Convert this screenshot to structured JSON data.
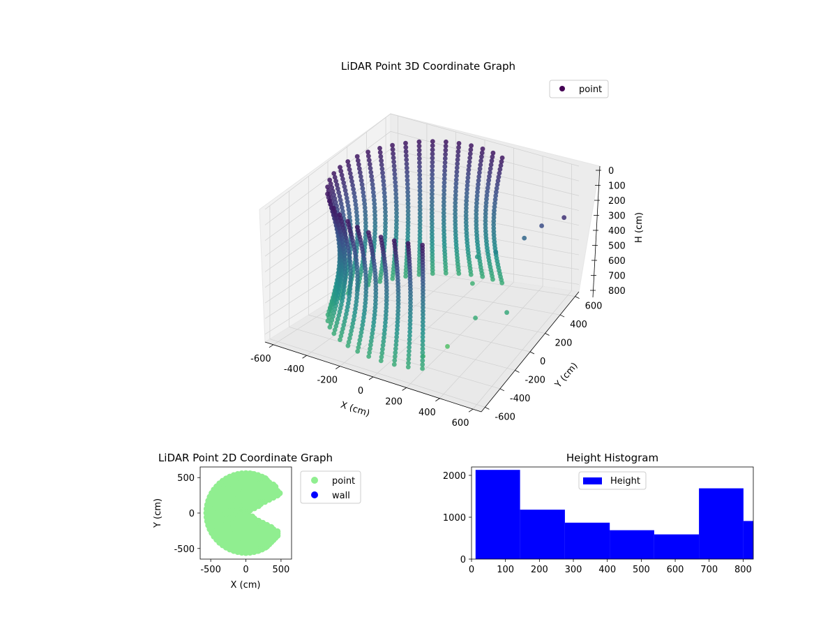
{
  "colors": {
    "viridis": [
      "#440154",
      "#3b528b",
      "#21918c",
      "#5ec962",
      "#fde725"
    ],
    "scatter2d_point": "#90ee90",
    "scatter2d_wall": "#0000ff",
    "histogram_bar": "#0000ff"
  },
  "chart_data": [
    {
      "type": "scatter",
      "title": "LiDAR Point 3D Coordinate Graph",
      "xlabel": "X (cm)",
      "ylabel": "Y (cm)",
      "zlabel": "H (cm)",
      "xlim": [
        -650,
        650
      ],
      "ylim": [
        -650,
        650
      ],
      "zlim": [
        0,
        850
      ],
      "z_inverted": true,
      "xticks": [
        "-600",
        "-400",
        "-200",
        "0",
        "200",
        "400",
        "600"
      ],
      "yticks": [
        "-600",
        "-400",
        "-200",
        "0",
        "200",
        "400",
        "600"
      ],
      "zticks": [
        "0",
        "100",
        "200",
        "300",
        "400",
        "500",
        "600",
        "700",
        "800"
      ],
      "legend": {
        "position": "top-right",
        "entries": [
          "point"
        ]
      },
      "colormap": "viridis",
      "series": [
        {
          "name": "point",
          "description_of_points": "dense cylindrical wall arc of radius ~560 cm spanning heights 0-800 cm, plus scattered points inside",
          "wall_radius": 560,
          "wall_angle_range_deg": [
            70,
            300
          ],
          "scattered_points": [
            {
              "x": 150,
              "y": 300,
              "h": 520
            },
            {
              "x": 300,
              "y": 250,
              "h": 430
            },
            {
              "x": 420,
              "y": 380,
              "h": 380
            },
            {
              "x": 500,
              "y": 450,
              "h": 320
            },
            {
              "x": 600,
              "y": 550,
              "h": 300
            },
            {
              "x": 350,
              "y": -100,
              "h": 650
            },
            {
              "x": 250,
              "y": -250,
              "h": 780
            },
            {
              "x": 150,
              "y": -350,
              "h": 820
            },
            {
              "x": 450,
              "y": 100,
              "h": 700
            },
            {
              "x": 200,
              "y": 150,
              "h": 600
            }
          ]
        }
      ]
    },
    {
      "type": "scatter",
      "title": "LiDAR Point 2D Coordinate Graph",
      "xlabel": "X (cm)",
      "ylabel": "Y (cm)",
      "xlim": [
        -650,
        650
      ],
      "ylim": [
        -650,
        650
      ],
      "xticks": [
        -500,
        0,
        500
      ],
      "yticks": [
        -500,
        0,
        500
      ],
      "legend": {
        "position": "outside right",
        "entries": [
          "point",
          "wall"
        ]
      },
      "series": [
        {
          "name": "point",
          "description_of_points": "filled half-disc of radius ~560 cm centered near origin, x from -560 to 560, mostly on left side"
        },
        {
          "name": "wall",
          "values": []
        }
      ]
    },
    {
      "type": "bar",
      "title": "Height Histogram",
      "xlabel": "",
      "ylabel": "",
      "xlim": [
        0,
        830
      ],
      "ylim": [
        0,
        2200
      ],
      "xticks": [
        0,
        100,
        200,
        300,
        400,
        500,
        600,
        700,
        800
      ],
      "yticks": [
        0,
        1000,
        2000
      ],
      "legend": {
        "position": "top-center",
        "entries": [
          "Height"
        ]
      },
      "bin_edges": [
        12,
        143,
        275,
        407,
        538,
        670,
        801,
        830
      ],
      "series": [
        {
          "name": "Height",
          "values": [
            2130,
            1180,
            870,
            690,
            590,
            1690,
            910
          ]
        }
      ]
    }
  ]
}
